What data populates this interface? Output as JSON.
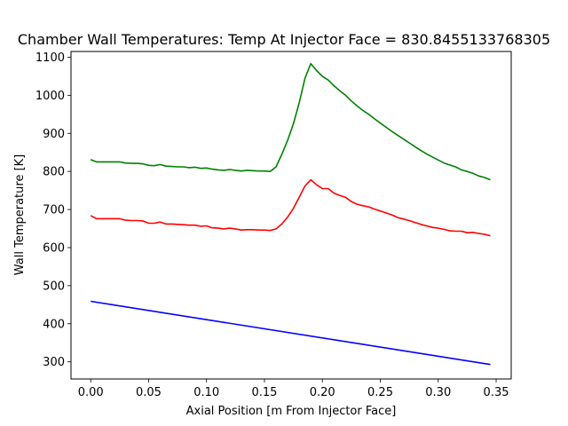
{
  "chart_data": {
    "type": "line",
    "title": "Chamber Wall Temperatures: Temp At Injector Face = 830.8455133768305",
    "xlabel": "Axial Position [m From Injector Face]",
    "ylabel": "Wall Temperature [K]",
    "xlim": [
      -0.017,
      0.363
    ],
    "ylim": [
      255,
      1115
    ],
    "xticks": [
      0.0,
      0.05,
      0.1,
      0.15,
      0.2,
      0.25,
      0.3,
      0.35
    ],
    "xtick_labels": [
      "0.00",
      "0.05",
      "0.10",
      "0.15",
      "0.20",
      "0.25",
      "0.30",
      "0.35"
    ],
    "yticks": [
      300,
      400,
      500,
      600,
      700,
      800,
      900,
      1000,
      1100
    ],
    "ytick_labels": [
      "300",
      "400",
      "500",
      "600",
      "700",
      "800",
      "900",
      "1000",
      "1100"
    ],
    "grid": false,
    "series": [
      {
        "color": "#008000",
        "x": [
          0.0,
          0.005,
          0.01,
          0.015,
          0.02,
          0.025,
          0.03,
          0.035,
          0.04,
          0.045,
          0.05,
          0.055,
          0.06,
          0.065,
          0.07,
          0.075,
          0.08,
          0.085,
          0.09,
          0.095,
          0.1,
          0.105,
          0.11,
          0.115,
          0.12,
          0.125,
          0.13,
          0.135,
          0.14,
          0.145,
          0.15,
          0.155,
          0.16,
          0.165,
          0.17,
          0.175,
          0.18,
          0.185,
          0.19,
          0.195,
          0.2,
          0.205,
          0.21,
          0.215,
          0.22,
          0.225,
          0.23,
          0.235,
          0.24,
          0.245,
          0.25,
          0.255,
          0.26,
          0.265,
          0.27,
          0.275,
          0.28,
          0.285,
          0.29,
          0.295,
          0.3,
          0.305,
          0.31,
          0.315,
          0.32,
          0.325,
          0.33,
          0.335,
          0.34,
          0.345
        ],
        "values": [
          831,
          825,
          825,
          825,
          825,
          825,
          822,
          821,
          821,
          820,
          816,
          815,
          818,
          814,
          813,
          812,
          812,
          810,
          811,
          808,
          809,
          806,
          804,
          803,
          805,
          803,
          801,
          803,
          802,
          801,
          801,
          800,
          812,
          845,
          882,
          925,
          980,
          1045,
          1083,
          1065,
          1050,
          1040,
          1025,
          1012,
          1000,
          985,
          972,
          960,
          950,
          938,
          927,
          916,
          905,
          895,
          885,
          875,
          865,
          855,
          846,
          838,
          830,
          822,
          817,
          812,
          804,
          800,
          795,
          788,
          784,
          778
        ]
      },
      {
        "color": "#ff0000",
        "x": [
          0.0,
          0.005,
          0.01,
          0.015,
          0.02,
          0.025,
          0.03,
          0.035,
          0.04,
          0.045,
          0.05,
          0.055,
          0.06,
          0.065,
          0.07,
          0.075,
          0.08,
          0.085,
          0.09,
          0.095,
          0.1,
          0.105,
          0.11,
          0.115,
          0.12,
          0.125,
          0.13,
          0.135,
          0.14,
          0.145,
          0.15,
          0.155,
          0.16,
          0.165,
          0.17,
          0.175,
          0.18,
          0.185,
          0.19,
          0.195,
          0.2,
          0.205,
          0.21,
          0.215,
          0.22,
          0.225,
          0.23,
          0.235,
          0.24,
          0.245,
          0.25,
          0.255,
          0.26,
          0.265,
          0.27,
          0.275,
          0.28,
          0.285,
          0.29,
          0.295,
          0.3,
          0.305,
          0.31,
          0.315,
          0.32,
          0.325,
          0.33,
          0.335,
          0.34,
          0.345
        ],
        "values": [
          684,
          676,
          676,
          676,
          676,
          676,
          672,
          671,
          671,
          670,
          664,
          664,
          667,
          662,
          662,
          661,
          660,
          659,
          659,
          656,
          657,
          652,
          651,
          649,
          651,
          649,
          646,
          647,
          647,
          646,
          646,
          645,
          649,
          662,
          680,
          703,
          732,
          762,
          778,
          765,
          755,
          755,
          743,
          737,
          732,
          721,
          714,
          710,
          707,
          701,
          696,
          691,
          686,
          679,
          675,
          671,
          666,
          661,
          657,
          653,
          651,
          648,
          644,
          643,
          643,
          639,
          640,
          637,
          635,
          631
        ]
      },
      {
        "color": "#0000ff",
        "x": [
          0.0,
          0.345
        ],
        "values": [
          459,
          293
        ]
      }
    ]
  }
}
